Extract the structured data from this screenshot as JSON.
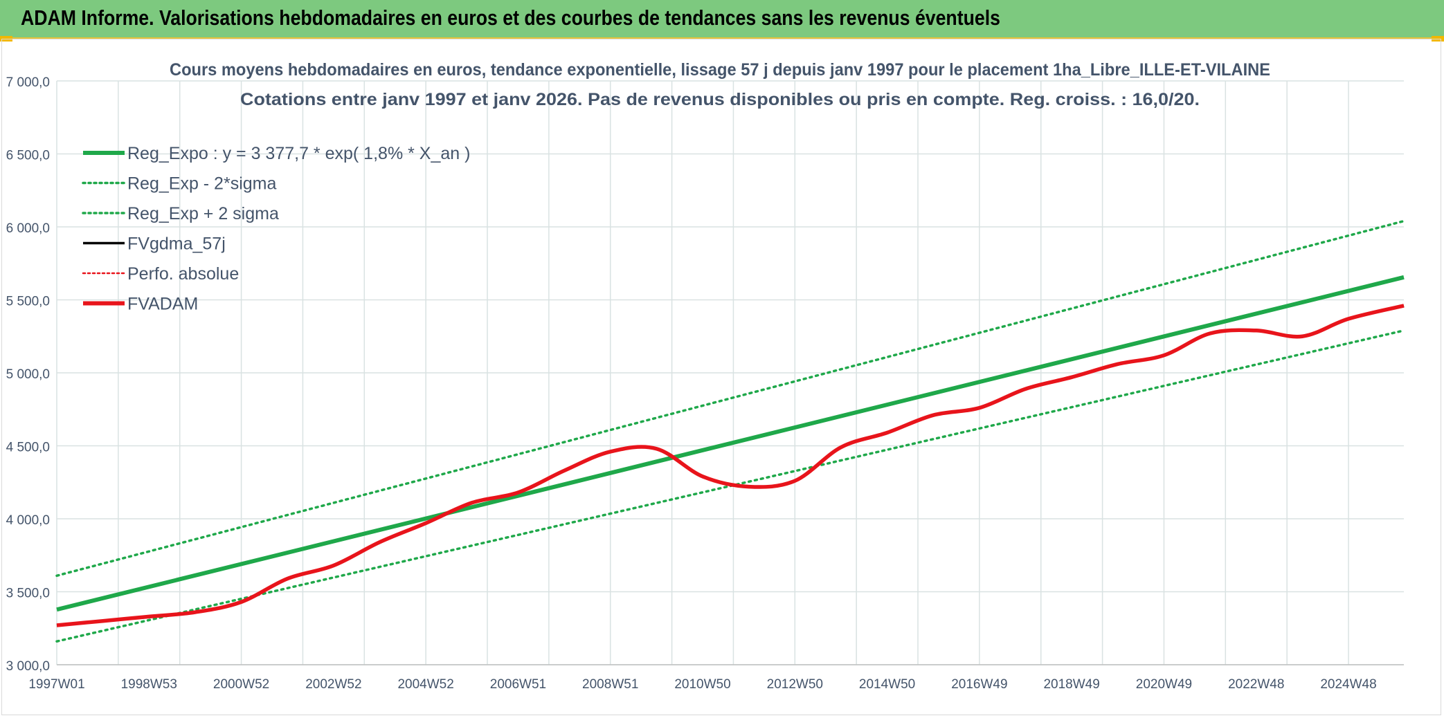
{
  "header": {
    "title": "ADAM Informe. Valorisations hebdomadaires en euros et des courbes de tendances sans les revenus éventuels"
  },
  "colors": {
    "header_bg": "#7dc97f",
    "trend": "#1fa84a",
    "series": "#e8141b",
    "gdma": "#000000",
    "grid": "#d9e2e2",
    "text": "#44546a"
  },
  "chart_data": {
    "type": "line",
    "title": "Cours moyens hebdomadaires en euros, tendance exponentielle, lissage 57 j depuis janv 1997 pour le placement 1ha_Libre_ILLE-ET-VILAINE",
    "subtitle": "Cotations entre janv 1997 et janv 2026. Pas de revenus disponibles ou pris en compte. Reg. croiss. : 16,0/20.",
    "ylim": [
      3000,
      7000
    ],
    "y_ticks": [
      "3 000,0",
      "3 500,0",
      "4 000,0",
      "4 500,0",
      "5 000,0",
      "5 500,0",
      "6 000,0",
      "6 500,0",
      "7 000,0"
    ],
    "x_range": [
      1997.0,
      2026.2
    ],
    "x_ticks": [
      {
        "label": "1997W01",
        "x": 1997.0
      },
      {
        "label": "1998W53",
        "x": 1999.0
      },
      {
        "label": "2000W52",
        "x": 2001.0
      },
      {
        "label": "2002W52",
        "x": 2003.0
      },
      {
        "label": "2004W52",
        "x": 2005.0
      },
      {
        "label": "2006W51",
        "x": 2007.0
      },
      {
        "label": "2008W51",
        "x": 2009.0
      },
      {
        "label": "2010W50",
        "x": 2011.0
      },
      {
        "label": "2012W50",
        "x": 2013.0
      },
      {
        "label": "2014W50",
        "x": 2015.0
      },
      {
        "label": "2016W49",
        "x": 2017.0
      },
      {
        "label": "2018W49",
        "x": 2019.0
      },
      {
        "label": "2020W49",
        "x": 2021.0
      },
      {
        "label": "2022W48",
        "x": 2023.0
      },
      {
        "label": "2024W48",
        "x": 2025.0
      }
    ],
    "legend": [
      {
        "label": "Reg_Expo : y = 3 377,7 * exp( 1,8% *  X_an )",
        "style": "solid-green"
      },
      {
        "label": "Reg_Exp - 2*sigma",
        "style": "dotted-green"
      },
      {
        "label": "Reg_Exp + 2 sigma",
        "style": "dotted-green"
      },
      {
        "label": "FVgdma_57j",
        "style": "solid-black"
      },
      {
        "label": "Perfo. absolue",
        "style": "dotted-red"
      },
      {
        "label": "FVADAM",
        "style": "solid-red"
      }
    ],
    "legend_position": "top-left",
    "grid": true,
    "series": [
      {
        "name": "Reg_Expo : y = 3 377,7 * exp( 1,8% *  X_an )",
        "x": [
          1997.0,
          2026.2
        ],
        "y": [
          3378,
          5655
        ]
      },
      {
        "name": "Reg_Exp - 2*sigma",
        "x": [
          1997.0,
          2026.2
        ],
        "y": [
          3160,
          5290
        ]
      },
      {
        "name": "Reg_Exp + 2 sigma",
        "x": [
          1997.0,
          2026.2
        ],
        "y": [
          3610,
          6040
        ]
      },
      {
        "name": "FVgdma_57j",
        "x": [
          1997.0,
          1998.0,
          1999.0,
          2000.0,
          2001.0,
          2002.0,
          2003.0,
          2004.0,
          2005.0,
          2006.0,
          2007.0,
          2008.0,
          2009.0,
          2010.0,
          2011.0,
          2012.0,
          2013.0,
          2014.0,
          2015.0,
          2016.0,
          2017.0,
          2018.0,
          2019.0,
          2020.0,
          2021.0,
          2022.0,
          2023.0,
          2024.0,
          2025.0,
          2026.2
        ],
        "y": [
          3270,
          3300,
          3330,
          3360,
          3430,
          3590,
          3680,
          3840,
          3970,
          4110,
          4180,
          4330,
          4460,
          4480,
          4290,
          4220,
          4260,
          4490,
          4590,
          4710,
          4760,
          4890,
          4970,
          5060,
          5120,
          5270,
          5290,
          5250,
          5370,
          5460
        ]
      },
      {
        "name": "FVADAM",
        "x": [
          1997.0,
          1998.0,
          1999.0,
          2000.0,
          2001.0,
          2002.0,
          2003.0,
          2004.0,
          2005.0,
          2006.0,
          2007.0,
          2008.0,
          2009.0,
          2010.0,
          2011.0,
          2012.0,
          2013.0,
          2014.0,
          2015.0,
          2016.0,
          2017.0,
          2018.0,
          2019.0,
          2020.0,
          2021.0,
          2022.0,
          2023.0,
          2024.0,
          2025.0,
          2026.2
        ],
        "y": [
          3270,
          3300,
          3330,
          3360,
          3430,
          3590,
          3680,
          3840,
          3970,
          4110,
          4180,
          4330,
          4460,
          4480,
          4290,
          4220,
          4260,
          4490,
          4590,
          4710,
          4760,
          4890,
          4970,
          5060,
          5120,
          5270,
          5290,
          5250,
          5370,
          5460
        ]
      }
    ]
  }
}
